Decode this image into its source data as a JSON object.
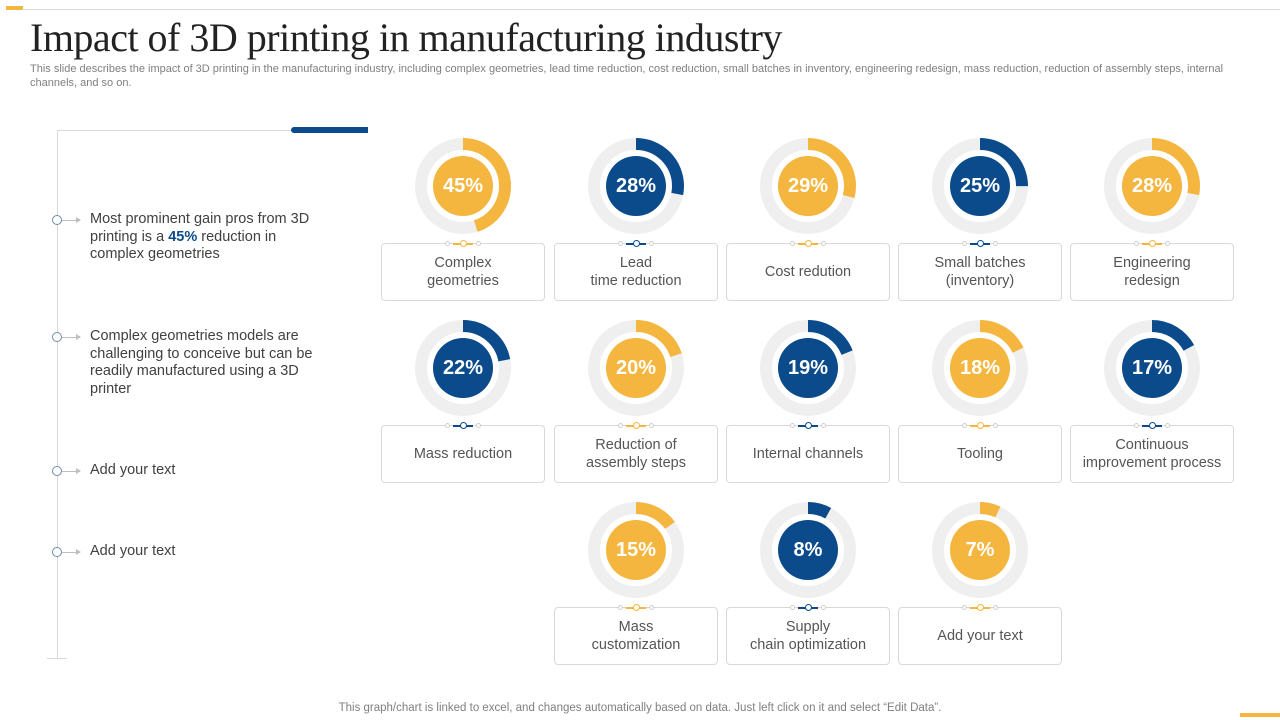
{
  "title": "Impact of 3D printing in manufacturing industry",
  "subtitle": "This slide describes the impact of 3D printing in the manufacturing industry, including complex geometries, lead time reduction, cost reduction, small batches in inventory, engineering redesign, mass reduction, reduction of assembly steps, internal channels, and so on.",
  "left_points": [
    {
      "pre": "Most prominent gain pros from 3D printing is a ",
      "highlight": "45%",
      "post": " reduction in complex geometries"
    },
    {
      "pre": "Complex geometries models are challenging to conceive but can be readily manufactured using a 3D printer",
      "highlight": "",
      "post": ""
    },
    {
      "pre": "Add your text",
      "highlight": "",
      "post": ""
    },
    {
      "pre": "Add your text",
      "highlight": "",
      "post": ""
    }
  ],
  "colors": {
    "orange": "#F4B63F",
    "blue": "#0B4A8B",
    "ring": "#EFEFEF"
  },
  "chart_data": {
    "type": "donut",
    "items": [
      {
        "label": "Complex\ngeometries",
        "value": 45,
        "display": "45%",
        "color": "orange"
      },
      {
        "label": "Lead\ntime reduction",
        "value": 28,
        "display": "28%",
        "color": "blue"
      },
      {
        "label": "Cost redution",
        "value": 29,
        "display": "29%",
        "color": "orange"
      },
      {
        "label": "Small batches\n(inventory)",
        "value": 25,
        "display": "25%",
        "color": "blue"
      },
      {
        "label": "Engineering\nredesign",
        "value": 28,
        "display": "28%",
        "color": "orange"
      },
      {
        "label": "Mass reduction",
        "value": 22,
        "display": "22%",
        "color": "blue"
      },
      {
        "label": "Reduction of\nassembly steps",
        "value": 20,
        "display": "20%",
        "color": "orange"
      },
      {
        "label": "Internal channels",
        "value": 19,
        "display": "19%",
        "color": "blue"
      },
      {
        "label": "Tooling",
        "value": 18,
        "display": "18%",
        "color": "orange"
      },
      {
        "label": "Continuous\nimprovement process",
        "value": 17,
        "display": "17%",
        "color": "blue"
      },
      {
        "label": "Mass\ncustomization",
        "value": 15,
        "display": "15%",
        "color": "orange"
      },
      {
        "label": "Supply\nchain optimization",
        "value": 8,
        "display": "8%",
        "color": "blue"
      },
      {
        "label": "Add your text",
        "value": 7,
        "display": "7%",
        "color": "orange"
      }
    ]
  },
  "footer": "This graph/chart is linked to excel,  and changes automatically based on data. Just left click on it and select “Edit Data”."
}
